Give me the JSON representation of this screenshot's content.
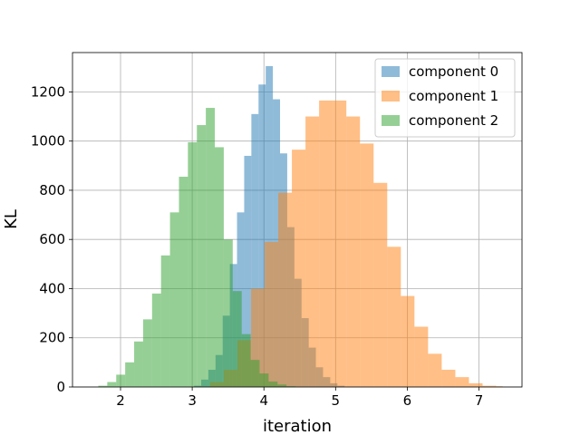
{
  "chart_data": {
    "type": "bar",
    "title": "",
    "xlabel": "iteration",
    "ylabel": "KL",
    "xlim": [
      1.33,
      7.6
    ],
    "ylim": [
      0,
      1360
    ],
    "xticks": [
      2,
      3,
      4,
      5,
      6,
      7
    ],
    "yticks": [
      0,
      200,
      400,
      600,
      800,
      1000,
      1200
    ],
    "grid": true,
    "legend_position": "upper right",
    "series": [
      {
        "name": "component 0",
        "color": "#1f77b4",
        "opacity": 0.5,
        "bin_edges": [
          3.025,
          3.125,
          3.225,
          3.325,
          3.425,
          3.525,
          3.625,
          3.725,
          3.825,
          3.925,
          4.025,
          4.125,
          4.225,
          4.325,
          4.425,
          4.525,
          4.625,
          4.725,
          4.825,
          4.925,
          5.025,
          5.125
        ],
        "values": [
          5,
          30,
          70,
          130,
          290,
          500,
          710,
          940,
          1110,
          1230,
          1305,
          1170,
          950,
          650,
          440,
          280,
          160,
          80,
          40,
          15,
          5
        ]
      },
      {
        "name": "component 1",
        "color": "#ff7f0e",
        "opacity": 0.5,
        "bin_edges": [
          3.25,
          3.44,
          3.63,
          3.82,
          4.01,
          4.2,
          4.39,
          4.58,
          4.77,
          4.96,
          5.15,
          5.34,
          5.53,
          5.72,
          5.91,
          6.1,
          6.29,
          6.48,
          6.67,
          6.86,
          7.05,
          7.24,
          7.33
        ],
        "values": [
          20,
          70,
          190,
          400,
          590,
          790,
          965,
          1100,
          1165,
          1165,
          1100,
          990,
          830,
          570,
          370,
          245,
          135,
          70,
          40,
          15,
          5,
          3
        ]
      },
      {
        "name": "component 2",
        "color": "#2ca02c",
        "opacity": 0.5,
        "bin_edges": [
          1.69,
          1.815,
          1.94,
          2.065,
          2.19,
          2.315,
          2.44,
          2.565,
          2.69,
          2.815,
          2.94,
          3.065,
          3.19,
          3.315,
          3.44,
          3.565,
          3.69,
          3.815,
          3.94,
          4.065,
          4.19,
          4.315,
          4.44
        ],
        "values": [
          5,
          20,
          50,
          100,
          185,
          275,
          380,
          535,
          710,
          855,
          995,
          1065,
          1135,
          975,
          600,
          390,
          215,
          110,
          55,
          22,
          10,
          3
        ]
      }
    ]
  }
}
